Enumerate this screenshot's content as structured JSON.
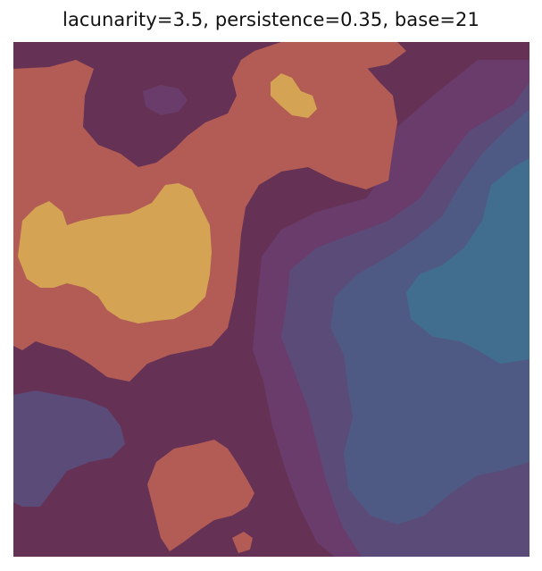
{
  "figure": {
    "title": "lacunarity=3.5, persistence=0.35, base=21"
  },
  "palette": {
    "deep_plum": "#653256",
    "violet": "#6a3c6c",
    "slate_violet": "#5b4b79",
    "steel_blue": "#4e5a84",
    "teal_blue": "#416e8f",
    "terracotta": "#b25c55",
    "ochre": "#d4a353"
  }
}
